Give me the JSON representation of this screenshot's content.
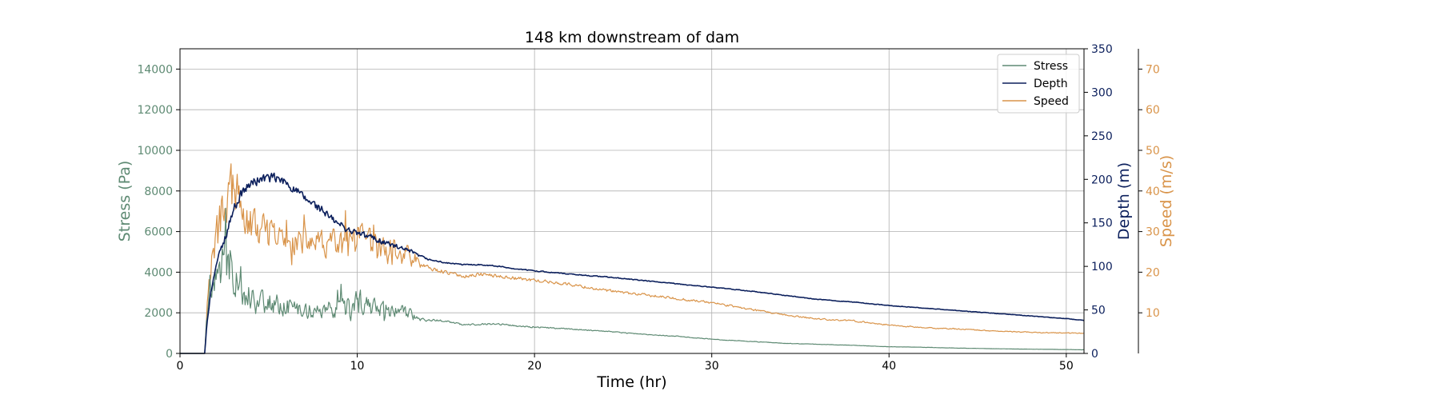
{
  "chart_data": {
    "type": "line",
    "title": "148 km downstream of dam",
    "xlabel": "Time (hr)",
    "xlim": [
      0,
      51
    ],
    "xticks": [
      0,
      10,
      20,
      30,
      40,
      50
    ],
    "grid": true,
    "legend_position": "top-right",
    "axes": [
      {
        "id": "stress",
        "label": "Stress (Pa)",
        "side": "left",
        "ylim": [
          0,
          15000
        ],
        "ticks": [
          0,
          2000,
          4000,
          6000,
          8000,
          10000,
          12000,
          14000
        ],
        "color": "#5e8a73"
      },
      {
        "id": "depth",
        "label": "Depth (m)",
        "side": "right",
        "ylim": [
          0,
          350
        ],
        "ticks": [
          0,
          50,
          100,
          150,
          200,
          250,
          300,
          350
        ],
        "color": "#0b1f5c"
      },
      {
        "id": "speed",
        "label": "Speed (m/s)",
        "side": "right-outer",
        "ylim": [
          0,
          75
        ],
        "ticks": [
          10,
          20,
          30,
          40,
          50,
          60,
          70
        ],
        "color": "#d9944a"
      }
    ],
    "series": [
      {
        "name": "Stress",
        "axis": "stress",
        "color": "#5e8a73",
        "x": [
          0,
          1.4,
          1.5,
          1.7,
          2,
          2.3,
          2.6,
          3,
          3.3,
          3.6,
          3.9,
          4.2,
          4.5,
          5,
          5.5,
          6,
          7,
          8,
          9,
          9.5,
          10,
          11,
          12,
          13,
          13.5,
          14,
          15,
          16,
          17,
          18,
          19,
          20,
          22,
          24,
          26,
          28,
          30,
          32,
          34,
          36,
          38,
          40,
          42,
          44,
          46,
          48,
          50,
          51
        ],
        "y": [
          0,
          0,
          1800,
          3000,
          3500,
          4200,
          4600,
          4300,
          3700,
          3200,
          2900,
          2700,
          2600,
          2500,
          2400,
          2300,
          2150,
          2100,
          2100,
          2150,
          2400,
          2300,
          2100,
          1950,
          1700,
          1650,
          1600,
          1400,
          1450,
          1450,
          1350,
          1300,
          1200,
          1100,
          950,
          850,
          700,
          600,
          500,
          450,
          400,
          330,
          300,
          260,
          230,
          210,
          190,
          180
        ],
        "noise": [
          0,
          0,
          0.15,
          0.25,
          0.3,
          0.35,
          0.4,
          0.4,
          0.4,
          0.35,
          0.35,
          0.35,
          0.35,
          0.3,
          0.3,
          0.3,
          0.25,
          0.3,
          0.35,
          0.4,
          0.4,
          0.3,
          0.25,
          0.2,
          0.08,
          0.05,
          0.04,
          0.04,
          0.04,
          0.04,
          0.04,
          0.04,
          0.03,
          0.03,
          0.03,
          0.03,
          0.03,
          0.03,
          0.03,
          0.03,
          0.03,
          0.03,
          0.03,
          0.03,
          0.03,
          0.03,
          0.03,
          0.03
        ]
      },
      {
        "name": "Depth",
        "axis": "depth",
        "color": "#0b1f5c",
        "x": [
          0,
          1.4,
          1.5,
          1.7,
          2,
          2.5,
          3,
          3.5,
          4,
          4.5,
          5,
          5.5,
          6,
          6.5,
          7,
          7.5,
          8,
          8.5,
          9,
          9.5,
          10,
          10.5,
          11,
          11.5,
          12,
          12.5,
          13,
          13.5,
          14,
          15,
          16,
          17,
          18,
          19,
          20,
          22,
          24,
          26,
          28,
          30,
          32,
          34,
          36,
          38,
          40,
          42,
          44,
          46,
          48,
          50,
          51
        ],
        "y": [
          0,
          0,
          30,
          65,
          100,
          130,
          165,
          185,
          195,
          200,
          202,
          200,
          196,
          188,
          178,
          172,
          165,
          155,
          148,
          142,
          138,
          135,
          132,
          128,
          124,
          120,
          117,
          112,
          108,
          104,
          102,
          102,
          100,
          97,
          95,
          91,
          88,
          84,
          80,
          76,
          72,
          67,
          62,
          59,
          55,
          52,
          49,
          46,
          43,
          40,
          38
        ],
        "noise": [
          0,
          0,
          0.05,
          0.05,
          0.05,
          0.05,
          0.04,
          0.04,
          0.04,
          0.04,
          0.04,
          0.04,
          0.04,
          0.04,
          0.04,
          0.04,
          0.04,
          0.04,
          0.04,
          0.04,
          0.04,
          0.04,
          0.04,
          0.04,
          0.04,
          0.03,
          0.03,
          0.02,
          0.01,
          0.008,
          0.008,
          0.008,
          0.008,
          0.008,
          0.008,
          0.008,
          0.008,
          0.008,
          0.008,
          0.008,
          0.008,
          0.008,
          0.008,
          0.008,
          0.008,
          0.008,
          0.008,
          0.008,
          0.008,
          0.008,
          0.008
        ]
      },
      {
        "name": "Speed",
        "axis": "speed",
        "color": "#d9944a",
        "x": [
          0,
          1.4,
          1.5,
          1.7,
          2,
          2.3,
          2.6,
          2.9,
          3.2,
          3.5,
          3.8,
          4.2,
          5,
          6,
          7,
          8,
          9,
          9.5,
          10,
          11,
          12,
          13,
          13.5,
          14,
          15,
          16,
          17,
          18,
          19,
          20,
          22,
          24,
          26,
          28,
          30,
          32,
          34,
          36,
          38,
          40,
          42,
          44,
          46,
          48,
          50,
          51
        ],
        "y": [
          0,
          0,
          10,
          20,
          27,
          33,
          38,
          40,
          39,
          35,
          32,
          31,
          29,
          28,
          27.5,
          27,
          26.5,
          26,
          27,
          26,
          25,
          24,
          22,
          21,
          20,
          19,
          19.5,
          19,
          18.5,
          18,
          17,
          15.5,
          14.5,
          13.5,
          12.5,
          11,
          9.5,
          8.5,
          8,
          7,
          6.3,
          6,
          5.5,
          5.2,
          5,
          5
        ],
        "noise": [
          0,
          0,
          0.25,
          0.25,
          0.25,
          0.25,
          0.22,
          0.22,
          0.2,
          0.2,
          0.2,
          0.2,
          0.18,
          0.15,
          0.15,
          0.15,
          0.2,
          0.25,
          0.25,
          0.2,
          0.18,
          0.15,
          0.08,
          0.04,
          0.03,
          0.03,
          0.03,
          0.03,
          0.03,
          0.03,
          0.03,
          0.03,
          0.03,
          0.03,
          0.03,
          0.03,
          0.03,
          0.03,
          0.03,
          0.03,
          0.03,
          0.03,
          0.03,
          0.03,
          0.03,
          0.03
        ]
      }
    ]
  }
}
